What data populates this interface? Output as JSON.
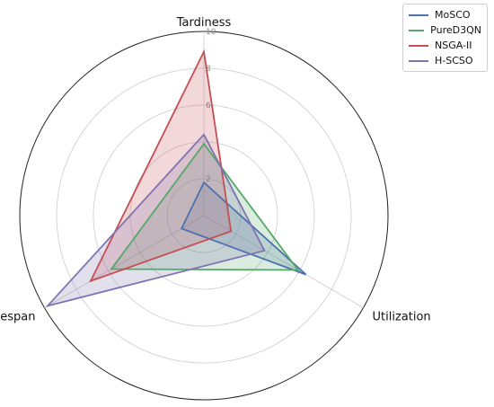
{
  "chart_data": {
    "type": "radar",
    "axes": [
      "Tardiness",
      "Utilization",
      "Makespan"
    ],
    "rlim": [
      0,
      10
    ],
    "rticks": [
      "2",
      "6",
      "8",
      "10"
    ],
    "rtick_values": [
      2,
      6,
      8,
      10
    ],
    "grid": true,
    "legend_position": "top-right",
    "series": [
      {
        "name": "MoSCO",
        "color": "#4c72b0",
        "values": [
          1.8,
          6.4,
          1.4
        ]
      },
      {
        "name": "PureD3QN",
        "color": "#55a868",
        "values": [
          3.9,
          5.9,
          5.8
        ]
      },
      {
        "name": "NSGA-II",
        "color": "#c44e52",
        "values": [
          8.9,
          1.7,
          7.1
        ]
      },
      {
        "name": "H-SCSO",
        "color": "#8172b2",
        "values": [
          4.4,
          3.8,
          9.8
        ]
      }
    ]
  }
}
